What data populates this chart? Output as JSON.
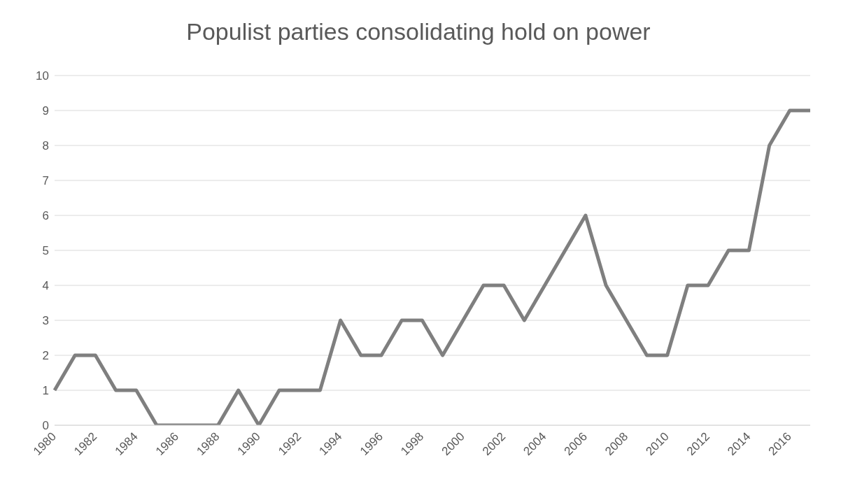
{
  "chart_data": {
    "type": "line",
    "title": "Populist parties consolidating hold on power",
    "categories": [
      "1980",
      null,
      "1982",
      null,
      "1984",
      null,
      "1986",
      null,
      "1988",
      null,
      "1990",
      null,
      "1992",
      null,
      "1994",
      null,
      "1996",
      null,
      "1998",
      null,
      "2000",
      null,
      "2002",
      null,
      "2004",
      null,
      "2006",
      null,
      "2008",
      null,
      "2010",
      null,
      "2012",
      null,
      "2014",
      null,
      "2016",
      null
    ],
    "series": [
      {
        "color": "#7f7f7f",
        "values": [
          1,
          2,
          2,
          1,
          1,
          0,
          0,
          0,
          0,
          1,
          0,
          1,
          1,
          1,
          3,
          2,
          2,
          3,
          3,
          2,
          3,
          4,
          4,
          3,
          4,
          5,
          6,
          4,
          3,
          2,
          2,
          4,
          4,
          5,
          5,
          8,
          9,
          9
        ]
      }
    ],
    "ylim": [
      0,
      10
    ],
    "yticks": [
      0,
      1,
      2,
      3,
      4,
      5,
      6,
      7,
      8,
      9,
      10
    ],
    "grid": "y",
    "legend": false,
    "marker": "none",
    "line_style": "solid"
  }
}
